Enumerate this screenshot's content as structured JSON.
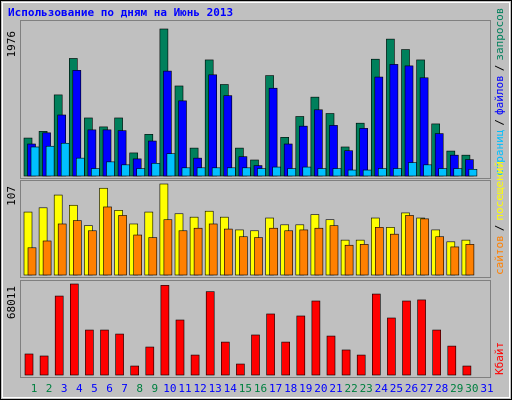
{
  "chart_data": [
    {
      "type": "bar",
      "title": "Использование по дням на Июнь 2013",
      "legend_separator": "/",
      "ylim": [
        0,
        1976
      ],
      "yticks": [
        1976
      ],
      "series": [
        {
          "name": "запросов",
          "color": "#00805c",
          "values": [
            510,
            600,
            1090,
            1580,
            780,
            660,
            780,
            310,
            560,
            1976,
            1210,
            375,
            1560,
            1230,
            375,
            215,
            1350,
            520,
            800,
            1060,
            840,
            390,
            710,
            1570,
            1840,
            1700,
            1560,
            700,
            335,
            280,
            0
          ]
        },
        {
          "name": "файлов",
          "color": "#0000ff",
          "values": [
            430,
            580,
            820,
            1420,
            620,
            620,
            610,
            230,
            470,
            1410,
            1010,
            240,
            1360,
            1080,
            260,
            140,
            1180,
            430,
            670,
            890,
            680,
            340,
            640,
            1330,
            1500,
            1480,
            1320,
            570,
            280,
            220,
            0
          ]
        },
        {
          "name": "страниц",
          "color": "#00c0ff",
          "values": [
            390,
            400,
            440,
            240,
            100,
            190,
            150,
            100,
            170,
            300,
            110,
            110,
            110,
            110,
            110,
            100,
            120,
            100,
            120,
            100,
            100,
            80,
            80,
            100,
            100,
            180,
            150,
            100,
            100,
            90,
            0
          ]
        }
      ]
    },
    {
      "type": "bar",
      "legend_separator": "/",
      "ylim": [
        0,
        107
      ],
      "yticks": [
        107
      ],
      "series": [
        {
          "name": "посещений",
          "color": "#ffff00",
          "values": [
            74,
            79,
            94,
            82,
            58,
            102,
            76,
            60,
            74,
            107,
            72,
            68,
            75,
            68,
            53,
            52,
            67,
            59,
            59,
            71,
            65,
            41,
            41,
            67,
            56,
            73,
            67,
            53,
            39,
            41,
            0
          ]
        },
        {
          "name": "сайтов",
          "color": "#ff8000",
          "values": [
            32,
            40,
            60,
            64,
            52,
            80,
            70,
            47,
            44,
            65,
            52,
            55,
            60,
            54,
            45,
            44,
            55,
            52,
            53,
            55,
            58,
            35,
            36,
            56,
            48,
            70,
            66,
            45,
            33,
            36,
            0
          ]
        }
      ]
    },
    {
      "type": "bar",
      "ylim": [
        0,
        68011
      ],
      "yticks": [
        68011
      ],
      "categories": [
        "1",
        "2",
        "3",
        "4",
        "5",
        "6",
        "7",
        "8",
        "9",
        "10",
        "11",
        "12",
        "13",
        "14",
        "15",
        "16",
        "17",
        "18",
        "19",
        "20",
        "21",
        "22",
        "23",
        "24",
        "25",
        "26",
        "27",
        "28",
        "29",
        "30",
        "31"
      ],
      "category_colors": [
        "#008040",
        "#008040",
        "#0000ff",
        "#0000ff",
        "#0000ff",
        "#0000ff",
        "#0000ff",
        "#008040",
        "#008040",
        "#0000ff",
        "#0000ff",
        "#0000ff",
        "#0000ff",
        "#0000ff",
        "#008040",
        "#008040",
        "#0000ff",
        "#0000ff",
        "#0000ff",
        "#0000ff",
        "#0000ff",
        "#008040",
        "#008040",
        "#0000ff",
        "#0000ff",
        "#0000ff",
        "#0000ff",
        "#0000ff",
        "#008040",
        "#008040",
        "#0000ff"
      ],
      "series": [
        {
          "name": "Кбайт",
          "color": "#ff0000",
          "values": [
            15700,
            14200,
            59000,
            68011,
            33600,
            33600,
            30600,
            6700,
            20900,
            67000,
            41100,
            14900,
            62300,
            24600,
            8200,
            29900,
            45600,
            24600,
            44100,
            55300,
            29100,
            18700,
            14900,
            60500,
            42600,
            55300,
            56100,
            33600,
            21600,
            6700,
            0
          ]
        }
      ]
    }
  ]
}
